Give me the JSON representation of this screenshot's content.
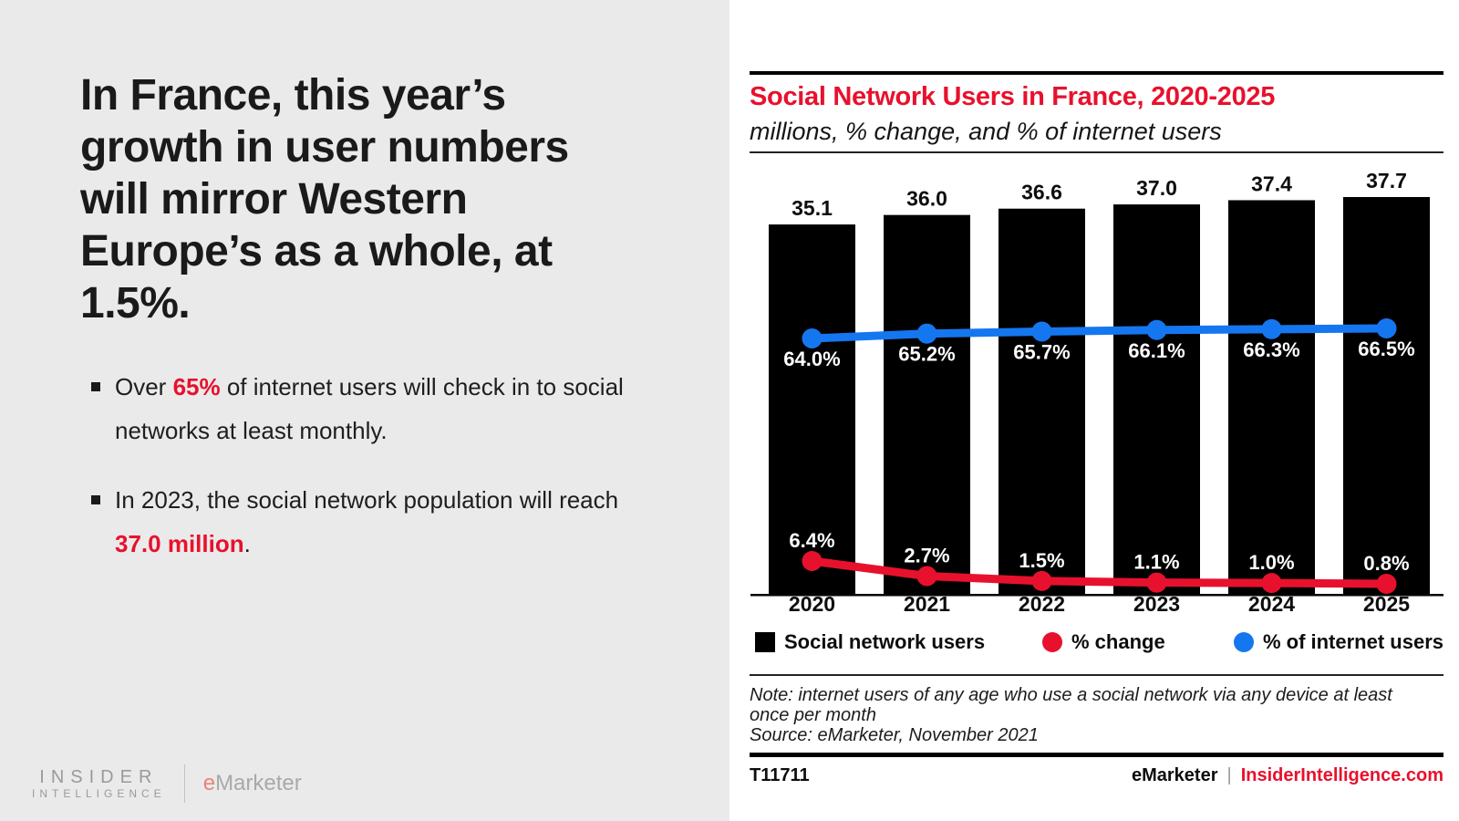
{
  "left_panel": {
    "headline": "In France, this year’s\ngrowth in user numbers\nwill mirror Western\nEurope’s as a whole, at\n1.5%.",
    "bullets": [
      {
        "pre": "Over ",
        "highlight": "65%",
        "post": " of internet users will check in to social networks at least monthly."
      },
      {
        "pre": "In 2023, the social network population will reach ",
        "highlight": "37.0 million",
        "post": "."
      }
    ],
    "logo": {
      "line1": "INSIDER",
      "line2": "INTELLIGENCE",
      "brand_e": "e",
      "brand_rest": "Marketer"
    }
  },
  "chart_panel": {
    "title": "Social Network Users in France, 2020-2025",
    "subtitle": "millions, % change, and % of internet users",
    "note": "Note: internet users of any age who use a social network via any device at least\nonce per month\nSource: eMarketer, November 2021",
    "footer": {
      "id": "T11711",
      "brand": "eMarketer",
      "separator": "|",
      "url": "InsiderIntelligence.com"
    }
  },
  "chart_data": {
    "type": "bar",
    "title": "Social Network Users in France, 2020-2025",
    "subtitle": "millions, % change, and % of internet users",
    "categories": [
      "2020",
      "2021",
      "2022",
      "2023",
      "2024",
      "2025"
    ],
    "series": [
      {
        "name": "Social network users",
        "type": "bar",
        "unit": "millions",
        "values": [
          35.1,
          36.0,
          36.6,
          37.0,
          37.4,
          37.7
        ],
        "color": "#000000"
      },
      {
        "name": "% change",
        "type": "line",
        "unit": "%",
        "values": [
          6.4,
          2.7,
          1.5,
          1.1,
          1.0,
          0.8
        ],
        "color": "#e8112d"
      },
      {
        "name": "% of internet users",
        "type": "line",
        "unit": "%",
        "values": [
          64.0,
          65.2,
          65.7,
          66.1,
          66.3,
          66.5
        ],
        "color": "#1577f0"
      }
    ],
    "bar_axis_range": [
      0,
      37.7
    ],
    "grid": "off",
    "legend_position": "bottom"
  },
  "colors": {
    "accent_red": "#e8112d",
    "line_blue": "#1577f0",
    "bar_black": "#000000",
    "panel_gray": "#eaeaea"
  }
}
